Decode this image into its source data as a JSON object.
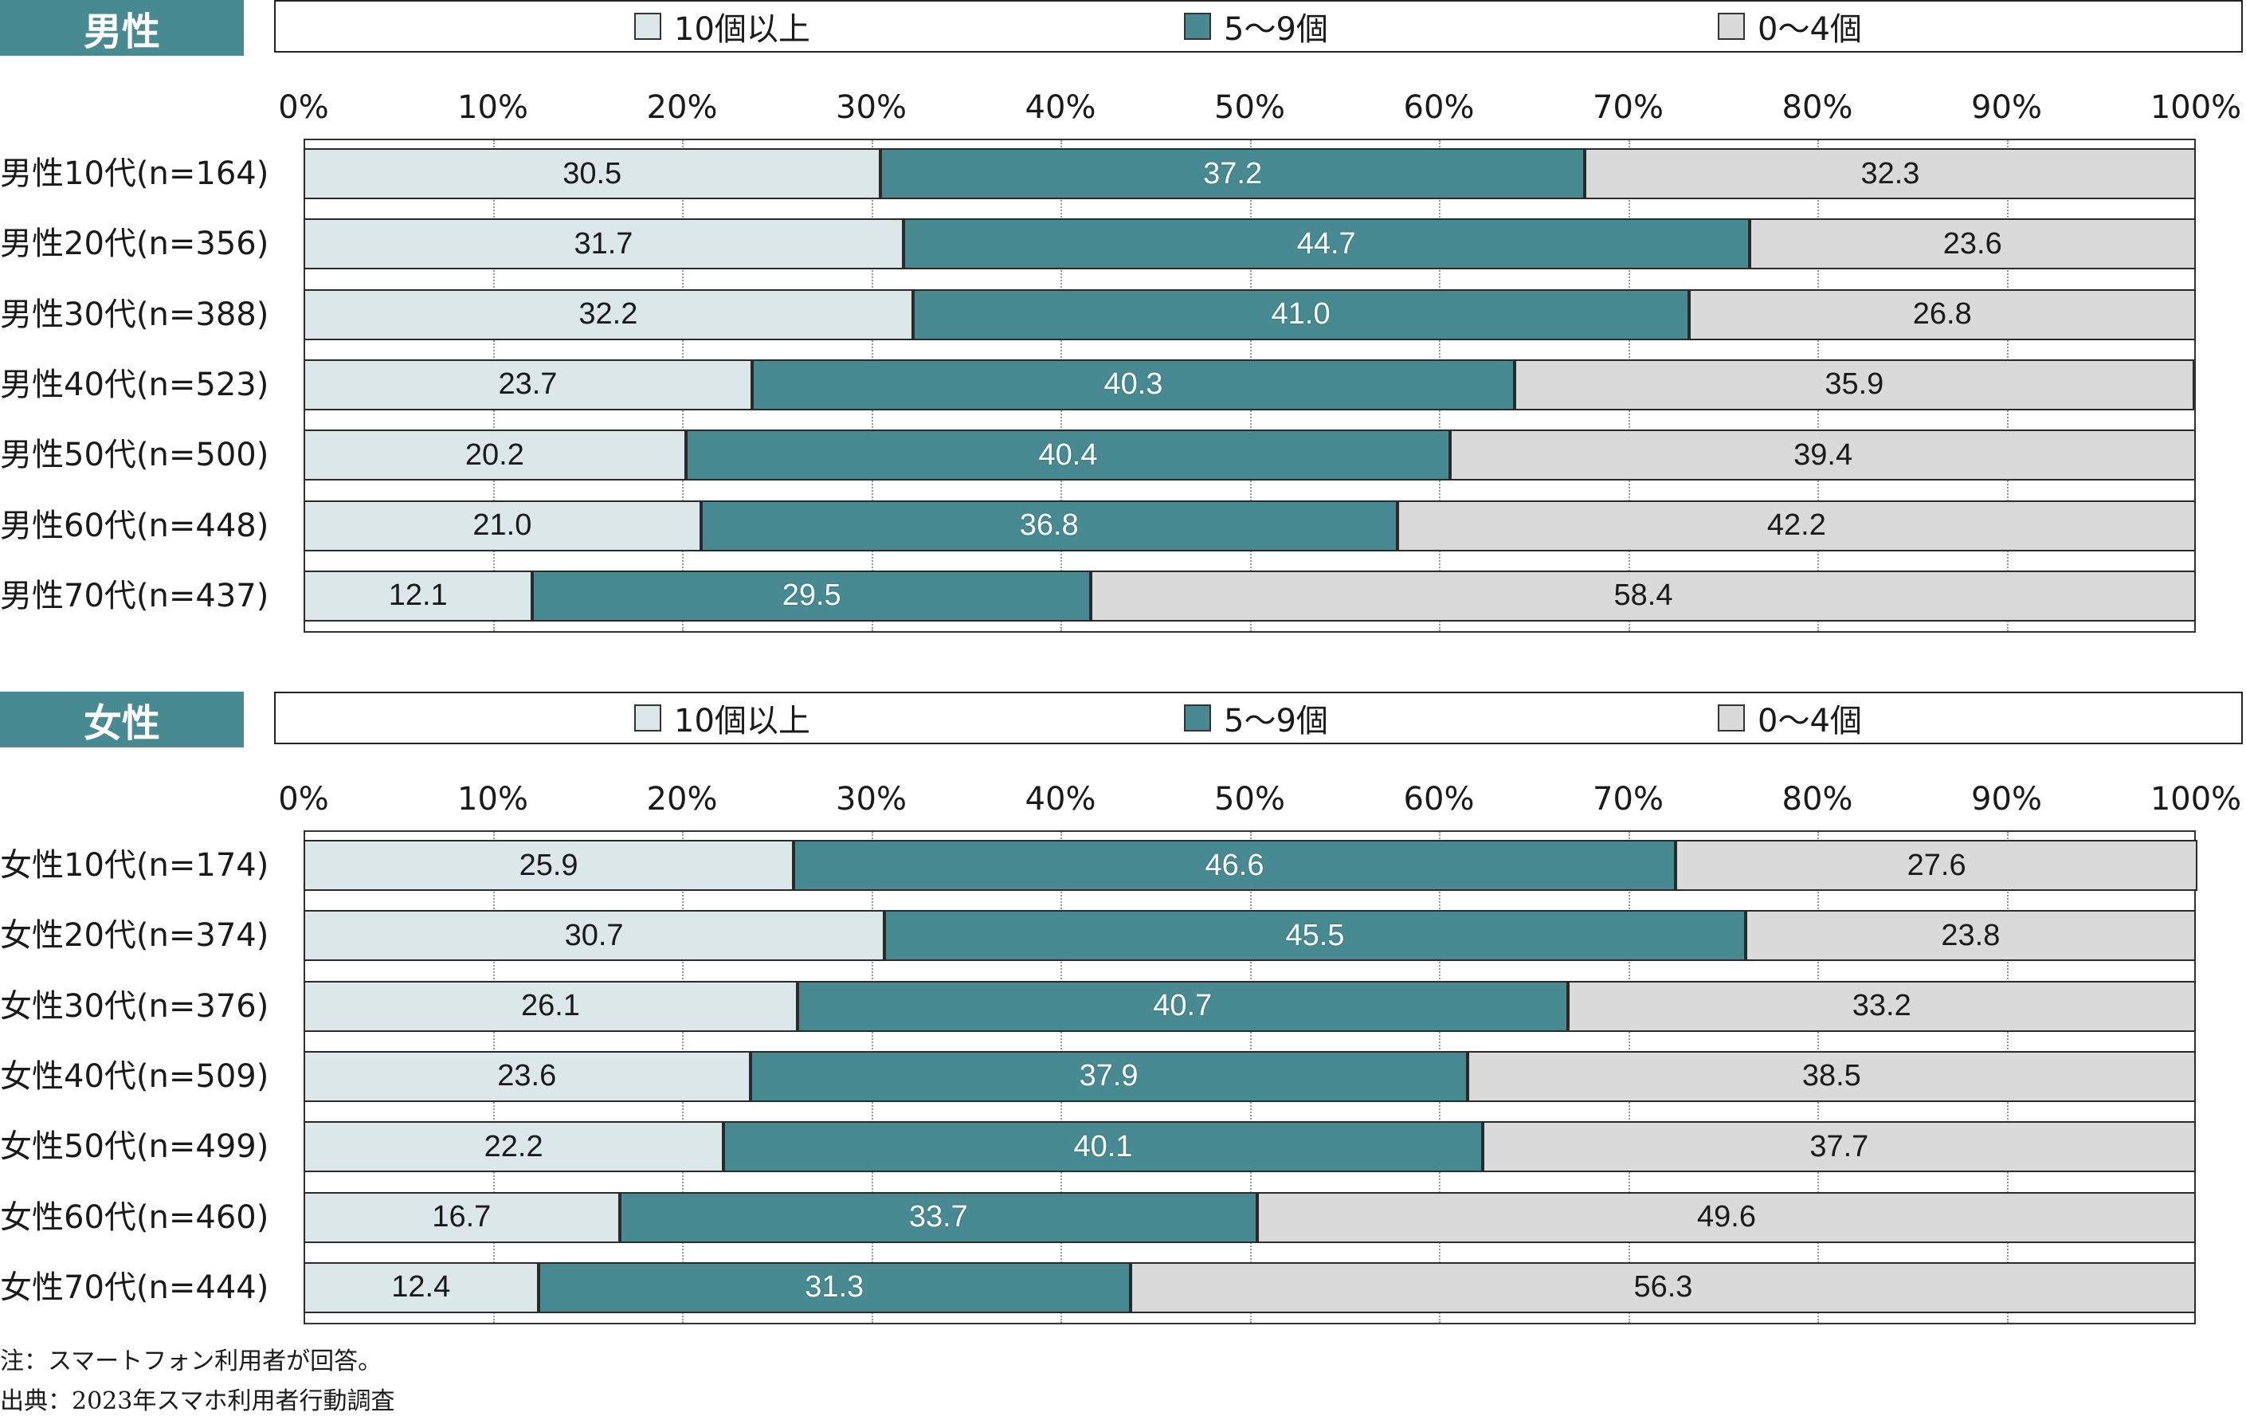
{
  "colors": {
    "header_bg": "#478a92",
    "s10": "#dbe7e9",
    "s59": "#478a92",
    "s04": "#dadada"
  },
  "male": {
    "title": "男性",
    "legend": [
      "10個以上",
      "5～9個",
      "0～4個"
    ]
  },
  "female": {
    "title": "女性",
    "legend": [
      "10個以上",
      "5～9個",
      "0～4個"
    ]
  },
  "footnote": {
    "note": "注：スマートフォン利用者が回答。",
    "source": "出典：2023年スマホ利用者行動調査"
  },
  "chart_data": [
    {
      "type": "bar",
      "orientation": "horizontal",
      "stacked": "percent",
      "title": "男性",
      "xlim": [
        0,
        100
      ],
      "x_ticks": [
        "0%",
        "10%",
        "20%",
        "30%",
        "40%",
        "50%",
        "60%",
        "70%",
        "80%",
        "90%",
        "100%"
      ],
      "grid": true,
      "legend_position": "top",
      "categories": [
        "男性10代(n=164)",
        "男性20代(n=356)",
        "男性30代(n=388)",
        "男性40代(n=523)",
        "男性50代(n=500)",
        "男性60代(n=448)",
        "男性70代(n=437)"
      ],
      "series": [
        {
          "name": "10個以上",
          "values": [
            30.5,
            31.7,
            32.2,
            23.7,
            20.2,
            21.0,
            12.1
          ]
        },
        {
          "name": "5～9個",
          "values": [
            37.2,
            44.7,
            41.0,
            40.3,
            40.4,
            36.8,
            29.5
          ]
        },
        {
          "name": "0～4個",
          "values": [
            32.3,
            23.6,
            26.8,
            35.9,
            39.4,
            42.2,
            58.4
          ]
        }
      ]
    },
    {
      "type": "bar",
      "orientation": "horizontal",
      "stacked": "percent",
      "title": "女性",
      "xlim": [
        0,
        100
      ],
      "x_ticks": [
        "0%",
        "10%",
        "20%",
        "30%",
        "40%",
        "50%",
        "60%",
        "70%",
        "80%",
        "90%",
        "100%"
      ],
      "grid": true,
      "legend_position": "top",
      "categories": [
        "女性10代(n=174)",
        "女性20代(n=374)",
        "女性30代(n=376)",
        "女性40代(n=509)",
        "女性50代(n=499)",
        "女性60代(n=460)",
        "女性70代(n=444)"
      ],
      "series": [
        {
          "name": "10個以上",
          "values": [
            25.9,
            30.7,
            26.1,
            23.6,
            22.2,
            16.7,
            12.4
          ]
        },
        {
          "name": "5～9個",
          "values": [
            46.6,
            45.5,
            40.7,
            37.9,
            40.1,
            33.7,
            31.3
          ]
        },
        {
          "name": "0～4個",
          "values": [
            27.6,
            23.8,
            33.2,
            38.5,
            37.7,
            49.6,
            56.3
          ]
        }
      ]
    }
  ]
}
